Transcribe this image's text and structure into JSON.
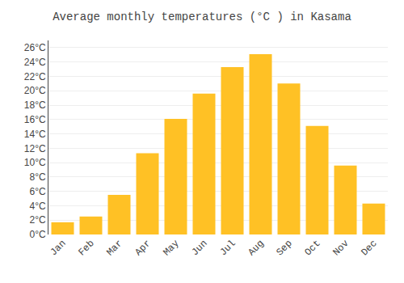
{
  "chart_data": {
    "type": "bar",
    "title": "Average monthly temperatures (°C ) in Kasama",
    "categories": [
      "Jan",
      "Feb",
      "Mar",
      "Apr",
      "May",
      "Jun",
      "Jul",
      "Aug",
      "Sep",
      "Oct",
      "Nov",
      "Dec"
    ],
    "values": [
      1.7,
      2.5,
      5.5,
      11.3,
      16.1,
      19.6,
      23.3,
      25.1,
      21.0,
      15.1,
      9.6,
      4.3
    ],
    "color": "#FFC125",
    "ylim": [
      0,
      27
    ],
    "yticks": [
      {
        "value": 0,
        "label": "0°C"
      },
      {
        "value": 2,
        "label": "2°C"
      },
      {
        "value": 4,
        "label": "4°C"
      },
      {
        "value": 6,
        "label": "6°C"
      },
      {
        "value": 8,
        "label": "8°C"
      },
      {
        "value": 10,
        "label": "10°C"
      },
      {
        "value": 12,
        "label": "12°C"
      },
      {
        "value": 14,
        "label": "14°C"
      },
      {
        "value": 16,
        "label": "16°C"
      },
      {
        "value": 18,
        "label": "18°C"
      },
      {
        "value": 20,
        "label": "20°C"
      },
      {
        "value": 22,
        "label": "22°C"
      },
      {
        "value": 24,
        "label": "24°C"
      },
      {
        "value": 26,
        "label": "26°C"
      }
    ],
    "grid": true
  }
}
